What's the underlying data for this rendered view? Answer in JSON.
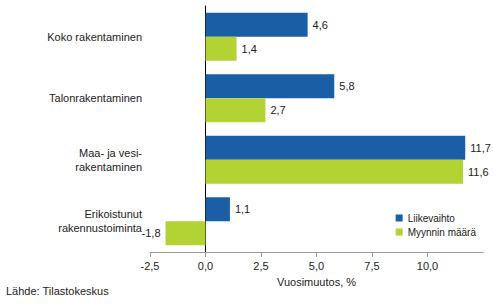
{
  "chart_data": {
    "type": "bar",
    "orientation": "horizontal",
    "categories": [
      "Koko rakentaminen",
      "Talonrakentaminen",
      "Maa- ja vesi-\nrakentaminen",
      "Erikoistunut\nrakennustoiminta"
    ],
    "series": [
      {
        "name": "Liikevaihto",
        "color": "#1a5fa6",
        "values": [
          4.6,
          5.8,
          11.7,
          1.1
        ],
        "value_labels": [
          "4,6",
          "5,8",
          "11,7",
          "1,1"
        ]
      },
      {
        "name": "Myynnin määrä",
        "color": "#b3d335",
        "values": [
          1.4,
          2.7,
          11.6,
          -1.8
        ],
        "value_labels": [
          "1,4",
          "2,7",
          "11,6",
          "-1,8"
        ]
      }
    ],
    "x_label": "Vuosimuutos, %",
    "source": "Lähde: Tilastokeskus",
    "xlim": [
      -2.5,
      12.5
    ],
    "xticks": [
      {
        "value": -2.5,
        "label": "-2,5"
      },
      {
        "value": 0,
        "label": "0,0"
      },
      {
        "value": 2.5,
        "label": "2,5"
      },
      {
        "value": 5,
        "label": "5,0"
      },
      {
        "value": 7.5,
        "label": "7,5"
      },
      {
        "value": 10,
        "label": "10,0"
      }
    ],
    "data_labels": true,
    "grid": false,
    "legend": "lower right"
  }
}
